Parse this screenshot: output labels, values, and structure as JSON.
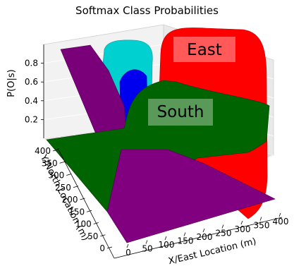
{
  "chart_data": {
    "type": "surface3d",
    "title": "Softmax Class Probabilities",
    "xlabel": "X/East Location (m)",
    "ylabel": "Y/North Location (m)",
    "zlabel": "P(O|s)",
    "xlim": [
      0,
      400
    ],
    "ylim": [
      0,
      400
    ],
    "zlim": [
      0,
      1
    ],
    "x_ticks": [
      "0",
      "50",
      "100",
      "150",
      "200",
      "250",
      "300",
      "350",
      "400"
    ],
    "y_ticks": [
      "0",
      "50",
      "100",
      "150",
      "200",
      "250",
      "300",
      "350",
      "400"
    ],
    "z_ticks": [
      "0.2",
      "0.4",
      "0.6",
      "0.8"
    ],
    "grid": true,
    "series": [
      {
        "name": "East",
        "color": "#ff0000",
        "label_shown": true
      },
      {
        "name": "South",
        "color": "#006400",
        "label_shown": true
      },
      {
        "color": "#00cccc",
        "label_shown": false
      },
      {
        "color": "#0000ff",
        "label_shown": false
      },
      {
        "color": "#800080",
        "label_shown": false
      }
    ]
  }
}
